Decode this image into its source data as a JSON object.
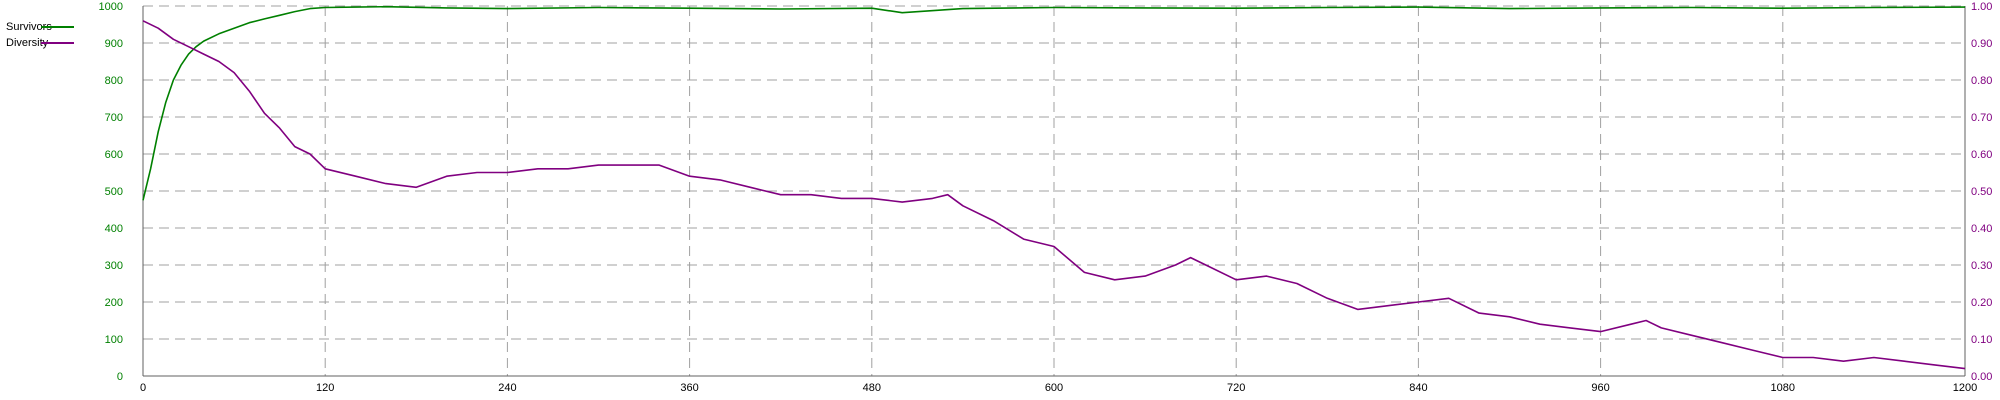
{
  "chart_data": {
    "type": "line",
    "title": "",
    "xlabel": "",
    "ylabel": "",
    "xlim": [
      0,
      1200
    ],
    "ylim_left": [
      0,
      1000
    ],
    "ylim_right": [
      0,
      1.0
    ],
    "grid": true,
    "legend_position": "top-left",
    "x_ticks": [
      "0",
      "120",
      "240",
      "360",
      "480",
      "600",
      "720",
      "840",
      "960",
      "1080",
      "1200"
    ],
    "y_left_ticks": [
      "0",
      "100",
      "200",
      "300",
      "400",
      "500",
      "600",
      "700",
      "800",
      "900",
      "1000"
    ],
    "y_right_ticks": [
      "0.00",
      "0.10",
      "0.20",
      "0.30",
      "0.40",
      "0.50",
      "0.60",
      "0.70",
      "0.80",
      "0.90",
      "1.00"
    ],
    "series": [
      {
        "name": "Survivors",
        "axis": "left",
        "color": "#008000",
        "x": [
          0,
          5,
          10,
          15,
          20,
          25,
          30,
          35,
          40,
          50,
          60,
          70,
          80,
          90,
          100,
          110,
          120,
          140,
          160,
          200,
          240,
          300,
          360,
          420,
          480,
          500,
          540,
          600,
          660,
          720,
          780,
          840,
          900,
          960,
          1020,
          1080,
          1140,
          1200
        ],
        "values": [
          475,
          560,
          660,
          740,
          800,
          840,
          870,
          890,
          905,
          925,
          940,
          955,
          965,
          975,
          985,
          993,
          996,
          997,
          998,
          995,
          993,
          996,
          994,
          992,
          994,
          982,
          993,
          996,
          995,
          994,
          996,
          997,
          993,
          995,
          996,
          994,
          996,
          997
        ]
      },
      {
        "name": "Diversity",
        "axis": "right",
        "color": "#800080",
        "x": [
          0,
          10,
          20,
          30,
          40,
          50,
          60,
          70,
          80,
          90,
          100,
          110,
          120,
          140,
          160,
          180,
          200,
          220,
          240,
          260,
          280,
          300,
          320,
          340,
          360,
          380,
          400,
          420,
          440,
          460,
          480,
          500,
          520,
          530,
          540,
          560,
          580,
          600,
          620,
          640,
          660,
          680,
          690,
          700,
          720,
          740,
          760,
          780,
          800,
          820,
          840,
          860,
          880,
          900,
          920,
          940,
          960,
          980,
          990,
          1000,
          1020,
          1040,
          1060,
          1080,
          1100,
          1120,
          1140,
          1160,
          1180,
          1200
        ],
        "values": [
          0.96,
          0.94,
          0.91,
          0.89,
          0.87,
          0.85,
          0.82,
          0.77,
          0.71,
          0.67,
          0.62,
          0.6,
          0.56,
          0.54,
          0.52,
          0.51,
          0.54,
          0.55,
          0.55,
          0.56,
          0.56,
          0.57,
          0.57,
          0.57,
          0.54,
          0.53,
          0.51,
          0.49,
          0.49,
          0.48,
          0.48,
          0.47,
          0.48,
          0.49,
          0.46,
          0.42,
          0.37,
          0.35,
          0.28,
          0.26,
          0.27,
          0.3,
          0.32,
          0.3,
          0.26,
          0.27,
          0.25,
          0.21,
          0.18,
          0.19,
          0.2,
          0.21,
          0.17,
          0.16,
          0.14,
          0.13,
          0.12,
          0.14,
          0.15,
          0.13,
          0.11,
          0.09,
          0.07,
          0.05,
          0.05,
          0.04,
          0.05,
          0.04,
          0.03,
          0.02
        ]
      }
    ]
  }
}
